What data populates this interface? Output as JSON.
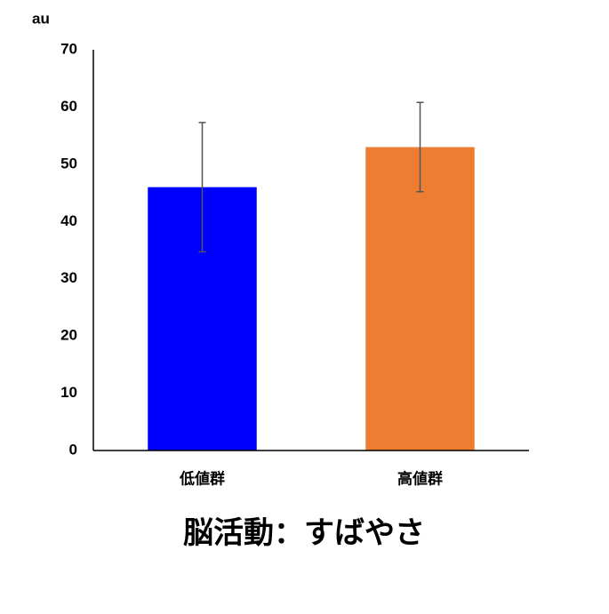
{
  "chart_data": {
    "type": "bar",
    "title": "脳活動：すばやさ",
    "y_label": "au",
    "categories": [
      "低値群",
      "高値群"
    ],
    "values": [
      46,
      53
    ],
    "errors": [
      11.3,
      7.8
    ],
    "colors": [
      "#0000ff",
      "#ed7d31"
    ],
    "ylim": [
      0,
      70
    ],
    "yticks": [
      0,
      10,
      20,
      30,
      40,
      50,
      60,
      70
    ],
    "grid": false
  }
}
